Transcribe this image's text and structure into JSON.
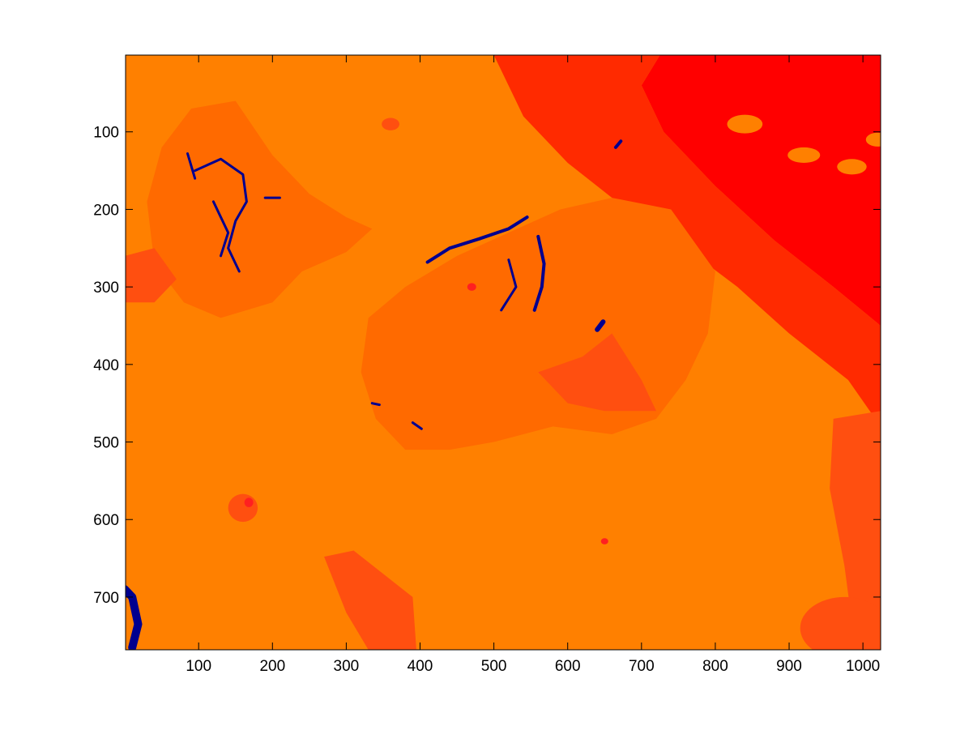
{
  "chart_data": {
    "type": "heatmap",
    "title": "",
    "xlabel": "",
    "ylabel": "",
    "xlim": [
      1,
      1024
    ],
    "ylim": [
      768,
      1
    ],
    "y_axis_reversed": true,
    "grid": false,
    "legend": "none",
    "x_ticks": [
      100,
      200,
      300,
      400,
      500,
      600,
      700,
      800,
      900,
      1000
    ],
    "y_ticks": [
      100,
      200,
      300,
      400,
      500,
      600,
      700
    ],
    "colormap": {
      "background": "#ff8000",
      "mid": "#ff6a00",
      "shadow": "#ff4f10",
      "deep": "#ff2a00",
      "peak": "#ff0000",
      "low": "#00008f",
      "spot": "#ff2020"
    },
    "regions": [
      {
        "level": "peak",
        "shape": "poly",
        "points": [
          [
            725,
            1
          ],
          [
            1024,
            1
          ],
          [
            1024,
            350
          ],
          [
            960,
            300
          ],
          [
            880,
            240
          ],
          [
            800,
            170
          ],
          [
            730,
            100
          ],
          [
            700,
            40
          ]
        ]
      },
      {
        "level": "deep",
        "shape": "poly",
        "points": [
          [
            500,
            1
          ],
          [
            725,
            1
          ],
          [
            700,
            40
          ],
          [
            730,
            100
          ],
          [
            800,
            170
          ],
          [
            880,
            240
          ],
          [
            960,
            300
          ],
          [
            1024,
            350
          ],
          [
            1024,
            480
          ],
          [
            980,
            420
          ],
          [
            900,
            360
          ],
          [
            830,
            300
          ],
          [
            760,
            250
          ],
          [
            680,
            200
          ],
          [
            600,
            140
          ],
          [
            540,
            80
          ]
        ]
      },
      {
        "level": "background",
        "shape": "ellipse",
        "cx": 840,
        "cy": 90,
        "rx": 24,
        "ry": 12
      },
      {
        "level": "background",
        "shape": "ellipse",
        "cx": 920,
        "cy": 130,
        "rx": 22,
        "ry": 10
      },
      {
        "level": "background",
        "shape": "ellipse",
        "cx": 985,
        "cy": 145,
        "rx": 20,
        "ry": 10
      },
      {
        "level": "background",
        "shape": "ellipse",
        "cx": 1020,
        "cy": 110,
        "rx": 16,
        "ry": 9
      },
      {
        "level": "shadow",
        "shape": "poly",
        "points": [
          [
            960,
            470
          ],
          [
            1024,
            460
          ],
          [
            1024,
            768
          ],
          [
            990,
            768
          ],
          [
            975,
            660
          ],
          [
            955,
            560
          ]
        ]
      },
      {
        "level": "shadow",
        "shape": "ellipse",
        "cx": 975,
        "cy": 740,
        "rx": 60,
        "ry": 40
      },
      {
        "level": "shadow",
        "shape": "poly",
        "points": [
          [
            270,
            648
          ],
          [
            310,
            640
          ],
          [
            390,
            700
          ],
          [
            395,
            768
          ],
          [
            330,
            768
          ],
          [
            300,
            720
          ]
        ]
      },
      {
        "level": "mid",
        "shape": "poly",
        "points": [
          [
            50,
            120
          ],
          [
            90,
            70
          ],
          [
            150,
            60
          ],
          [
            200,
            130
          ],
          [
            250,
            180
          ],
          [
            300,
            210
          ],
          [
            335,
            225
          ],
          [
            300,
            255
          ],
          [
            240,
            280
          ],
          [
            200,
            320
          ],
          [
            130,
            340
          ],
          [
            80,
            320
          ],
          [
            40,
            270
          ],
          [
            30,
            190
          ]
        ]
      },
      {
        "level": "mid",
        "shape": "poly",
        "points": [
          [
            330,
            340
          ],
          [
            380,
            300
          ],
          [
            450,
            260
          ],
          [
            520,
            230
          ],
          [
            590,
            200
          ],
          [
            660,
            185
          ],
          [
            740,
            200
          ],
          [
            800,
            280
          ],
          [
            790,
            360
          ],
          [
            760,
            420
          ],
          [
            720,
            470
          ],
          [
            660,
            490
          ],
          [
            580,
            480
          ],
          [
            500,
            500
          ],
          [
            440,
            510
          ],
          [
            380,
            510
          ],
          [
            340,
            470
          ],
          [
            320,
            410
          ]
        ]
      },
      {
        "level": "shadow",
        "shape": "poly",
        "points": [
          [
            560,
            410
          ],
          [
            620,
            390
          ],
          [
            660,
            360
          ],
          [
            700,
            420
          ],
          [
            720,
            460
          ],
          [
            650,
            460
          ],
          [
            600,
            450
          ]
        ]
      },
      {
        "level": "shadow",
        "shape": "poly",
        "points": [
          [
            0,
            260
          ],
          [
            40,
            250
          ],
          [
            70,
            290
          ],
          [
            40,
            320
          ],
          [
            0,
            320
          ]
        ]
      },
      {
        "level": "shadow",
        "shape": "ellipse",
        "cx": 360,
        "cy": 90,
        "rx": 12,
        "ry": 8
      },
      {
        "level": "shadow",
        "shape": "ellipse",
        "cx": 160,
        "cy": 585,
        "rx": 20,
        "ry": 18
      },
      {
        "level": "spot",
        "shape": "ellipse",
        "cx": 470,
        "cy": 300,
        "rx": 6,
        "ry": 5
      },
      {
        "level": "spot",
        "shape": "ellipse",
        "cx": 650,
        "cy": 628,
        "rx": 5,
        "ry": 4
      },
      {
        "level": "spot",
        "shape": "ellipse",
        "cx": 168,
        "cy": 578,
        "rx": 6,
        "ry": 6
      },
      {
        "level": "low",
        "shape": "line",
        "points": [
          [
            410,
            268
          ],
          [
            440,
            250
          ],
          [
            480,
            238
          ],
          [
            520,
            225
          ],
          [
            545,
            210
          ]
        ],
        "w": 4
      },
      {
        "level": "low",
        "shape": "line",
        "points": [
          [
            560,
            235
          ],
          [
            568,
            270
          ],
          [
            565,
            300
          ],
          [
            555,
            330
          ]
        ],
        "w": 4
      },
      {
        "level": "low",
        "shape": "line",
        "points": [
          [
            520,
            265
          ],
          [
            530,
            300
          ],
          [
            510,
            330
          ]
        ],
        "w": 3
      },
      {
        "level": "low",
        "shape": "line",
        "points": [
          [
            95,
            150
          ],
          [
            130,
            135
          ],
          [
            160,
            155
          ],
          [
            165,
            190
          ],
          [
            150,
            215
          ],
          [
            140,
            250
          ],
          [
            155,
            280
          ]
        ],
        "w": 3
      },
      {
        "level": "low",
        "shape": "line",
        "points": [
          [
            120,
            190
          ],
          [
            140,
            230
          ],
          [
            130,
            260
          ]
        ],
        "w": 3
      },
      {
        "level": "low",
        "shape": "line",
        "points": [
          [
            85,
            128
          ],
          [
            95,
            160
          ]
        ],
        "w": 3
      },
      {
        "level": "low",
        "shape": "line",
        "points": [
          [
            190,
            185
          ],
          [
            210,
            185
          ]
        ],
        "w": 3
      },
      {
        "level": "low",
        "shape": "line",
        "points": [
          [
            640,
            355
          ],
          [
            648,
            345
          ]
        ],
        "w": 6
      },
      {
        "level": "low",
        "shape": "line",
        "points": [
          [
            665,
            120
          ],
          [
            672,
            112
          ]
        ],
        "w": 4
      },
      {
        "level": "low",
        "shape": "line",
        "points": [
          [
            0,
            690
          ],
          [
            10,
            700
          ],
          [
            18,
            735
          ],
          [
            10,
            765
          ]
        ],
        "w": 10
      },
      {
        "level": "low",
        "shape": "line",
        "points": [
          [
            335,
            450
          ],
          [
            345,
            452
          ]
        ],
        "w": 3
      },
      {
        "level": "low",
        "shape": "line",
        "points": [
          [
            390,
            475
          ],
          [
            402,
            483
          ]
        ],
        "w": 3
      }
    ]
  }
}
